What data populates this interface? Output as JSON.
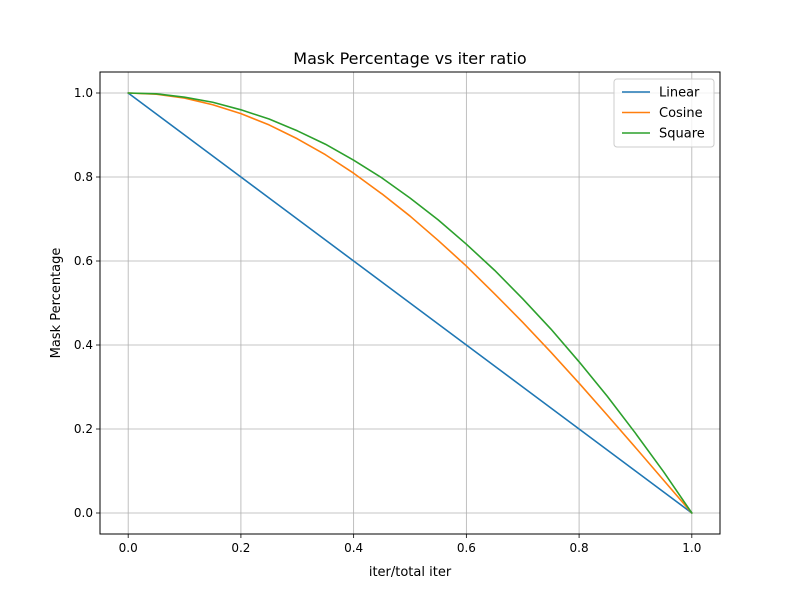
{
  "chart_data": {
    "type": "line",
    "title": "Mask Percentage vs iter ratio",
    "xlabel": "iter/total iter",
    "ylabel": "Mask Percentage",
    "xlim": [
      -0.05,
      1.05
    ],
    "ylim": [
      -0.05,
      1.05
    ],
    "grid": true,
    "legend_position": "top-right",
    "x_ticks": [
      0.0,
      0.2,
      0.4,
      0.6,
      0.8,
      1.0
    ],
    "x_tick_labels": [
      "0.0",
      "0.2",
      "0.4",
      "0.6",
      "0.8",
      "1.0"
    ],
    "y_ticks": [
      0.0,
      0.2,
      0.4,
      0.6,
      0.8,
      1.0
    ],
    "y_tick_labels": [
      "0.0",
      "0.2",
      "0.4",
      "0.6",
      "0.8",
      "1.0"
    ],
    "x": [
      0.0,
      0.05,
      0.1,
      0.15,
      0.2,
      0.25,
      0.3,
      0.35,
      0.4,
      0.45,
      0.5,
      0.55,
      0.6,
      0.65,
      0.7,
      0.75,
      0.8,
      0.85,
      0.9,
      0.95,
      1.0
    ],
    "series": [
      {
        "name": "Linear",
        "color": "#1f77b4",
        "values": [
          1.0,
          0.95,
          0.9,
          0.85,
          0.8,
          0.75,
          0.7,
          0.65,
          0.6,
          0.55,
          0.5,
          0.45,
          0.4,
          0.35,
          0.3,
          0.25,
          0.2,
          0.15,
          0.1,
          0.05,
          0.0
        ]
      },
      {
        "name": "Cosine",
        "color": "#ff7f0e",
        "values": [
          1.0,
          0.997,
          0.988,
          0.972,
          0.951,
          0.924,
          0.891,
          0.853,
          0.809,
          0.76,
          0.707,
          0.649,
          0.588,
          0.522,
          0.454,
          0.383,
          0.309,
          0.233,
          0.156,
          0.078,
          0.0
        ]
      },
      {
        "name": "Square",
        "color": "#2ca02c",
        "values": [
          1.0,
          0.998,
          0.99,
          0.978,
          0.96,
          0.938,
          0.91,
          0.878,
          0.84,
          0.798,
          0.75,
          0.698,
          0.64,
          0.578,
          0.51,
          0.438,
          0.36,
          0.278,
          0.19,
          0.098,
          0.0
        ]
      }
    ]
  }
}
